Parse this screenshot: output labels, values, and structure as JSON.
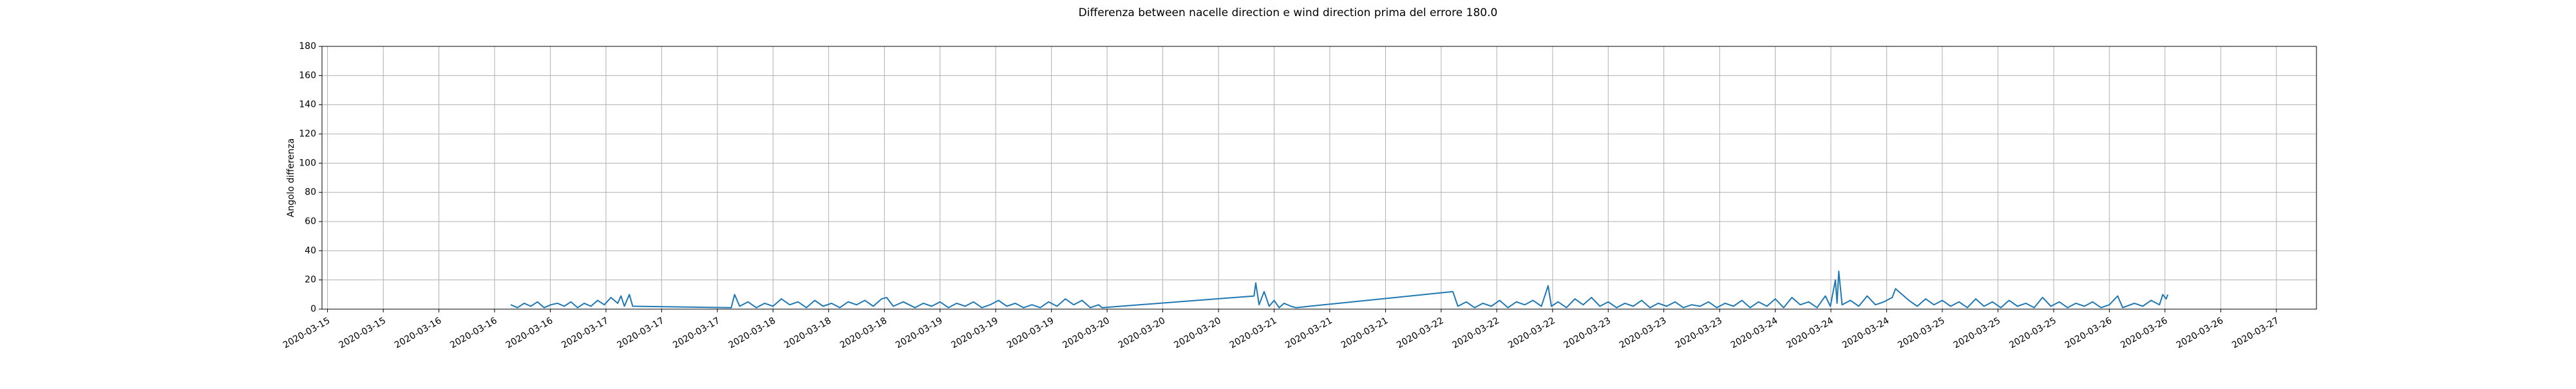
{
  "chart_data": {
    "type": "line",
    "title": "Differenza between nacelle direction e wind direction prima del errore 180.0",
    "ylabel": "Angolo differenza",
    "color": "#1f77b4",
    "grid": true,
    "xlim": [
      15.3,
      27.24
    ],
    "ylim": [
      0,
      180
    ],
    "yticks": [
      0,
      20,
      40,
      60,
      80,
      100,
      120,
      140,
      160,
      180
    ],
    "xticks": [
      {
        "value": 15.333,
        "label": "2020-03-15"
      },
      {
        "value": 15.667,
        "label": "2020-03-15"
      },
      {
        "value": 16,
        "label": "2020-03-16"
      },
      {
        "value": 16.333,
        "label": "2020-03-16"
      },
      {
        "value": 16.667,
        "label": "2020-03-16"
      },
      {
        "value": 17,
        "label": "2020-03-17"
      },
      {
        "value": 17.333,
        "label": "2020-03-17"
      },
      {
        "value": 17.667,
        "label": "2020-03-17"
      },
      {
        "value": 18,
        "label": "2020-03-18"
      },
      {
        "value": 18.333,
        "label": "2020-03-18"
      },
      {
        "value": 18.667,
        "label": "2020-03-18"
      },
      {
        "value": 19,
        "label": "2020-03-19"
      },
      {
        "value": 19.333,
        "label": "2020-03-19"
      },
      {
        "value": 19.667,
        "label": "2020-03-19"
      },
      {
        "value": 20,
        "label": "2020-03-20"
      },
      {
        "value": 20.333,
        "label": "2020-03-20"
      },
      {
        "value": 20.667,
        "label": "2020-03-20"
      },
      {
        "value": 21,
        "label": "2020-03-21"
      },
      {
        "value": 21.333,
        "label": "2020-03-21"
      },
      {
        "value": 21.667,
        "label": "2020-03-21"
      },
      {
        "value": 22,
        "label": "2020-03-22"
      },
      {
        "value": 22.333,
        "label": "2020-03-22"
      },
      {
        "value": 22.667,
        "label": "2020-03-22"
      },
      {
        "value": 23,
        "label": "2020-03-23"
      },
      {
        "value": 23.333,
        "label": "2020-03-23"
      },
      {
        "value": 23.667,
        "label": "2020-03-23"
      },
      {
        "value": 24,
        "label": "2020-03-24"
      },
      {
        "value": 24.333,
        "label": "2020-03-24"
      },
      {
        "value": 24.667,
        "label": "2020-03-24"
      },
      {
        "value": 25,
        "label": "2020-03-25"
      },
      {
        "value": 25.333,
        "label": "2020-03-25"
      },
      {
        "value": 25.667,
        "label": "2020-03-25"
      },
      {
        "value": 26,
        "label": "2020-03-26"
      },
      {
        "value": 26.333,
        "label": "2020-03-26"
      },
      {
        "value": 26.667,
        "label": "2020-03-26"
      },
      {
        "value": 27,
        "label": "2020-03-27"
      }
    ],
    "x": [
      16.43,
      16.47,
      16.51,
      16.55,
      16.59,
      16.63,
      16.67,
      16.71,
      16.75,
      16.79,
      16.83,
      16.87,
      16.91,
      16.95,
      16.99,
      17.03,
      17.07,
      17.09,
      17.11,
      17.14,
      17.16,
      17.75,
      17.77,
      17.8,
      17.85,
      17.9,
      17.95,
      18.0,
      18.05,
      18.1,
      18.15,
      18.2,
      18.25,
      18.3,
      18.35,
      18.4,
      18.45,
      18.5,
      18.55,
      18.6,
      18.65,
      18.68,
      18.72,
      18.78,
      18.85,
      18.9,
      18.95,
      19.0,
      19.05,
      19.1,
      19.15,
      19.2,
      19.25,
      19.3,
      19.35,
      19.4,
      19.45,
      19.5,
      19.55,
      19.6,
      19.65,
      19.7,
      19.75,
      19.8,
      19.85,
      19.9,
      19.95,
      19.97,
      20.88,
      20.89,
      20.91,
      20.94,
      20.97,
      21.0,
      21.03,
      21.06,
      21.1,
      21.13,
      22.07,
      22.1,
      22.15,
      22.2,
      22.25,
      22.3,
      22.35,
      22.4,
      22.45,
      22.5,
      22.55,
      22.6,
      22.64,
      22.66,
      22.7,
      22.75,
      22.8,
      22.85,
      22.9,
      22.95,
      23.0,
      23.05,
      23.1,
      23.15,
      23.2,
      23.25,
      23.3,
      23.35,
      23.4,
      23.45,
      23.5,
      23.55,
      23.6,
      23.65,
      23.7,
      23.75,
      23.8,
      23.85,
      23.9,
      23.95,
      24.0,
      24.05,
      24.1,
      24.15,
      24.2,
      24.25,
      24.3,
      24.33,
      24.36,
      24.37,
      24.38,
      24.4,
      24.45,
      24.5,
      24.55,
      24.6,
      24.65,
      24.7,
      24.72,
      24.75,
      24.8,
      24.85,
      24.9,
      24.95,
      25.0,
      25.05,
      25.1,
      25.15,
      25.2,
      25.25,
      25.3,
      25.35,
      25.4,
      25.45,
      25.5,
      25.55,
      25.6,
      25.65,
      25.7,
      25.75,
      25.8,
      25.85,
      25.9,
      25.95,
      26.0,
      26.05,
      26.08,
      26.15,
      26.2,
      26.25,
      26.3,
      26.32,
      26.34,
      26.35
    ],
    "values": [
      3,
      1,
      4,
      2,
      5,
      1,
      3,
      4,
      2,
      5,
      1,
      4,
      2,
      6,
      3,
      8,
      4,
      9,
      2,
      10,
      2,
      1,
      10,
      2,
      5,
      1,
      4,
      2,
      7,
      3,
      5,
      1,
      6,
      2,
      4,
      1,
      5,
      3,
      6,
      2,
      7,
      8,
      2,
      5,
      1,
      4,
      2,
      5,
      1,
      4,
      2,
      5,
      1,
      3,
      6,
      2,
      4,
      1,
      3,
      1,
      5,
      2,
      7,
      3,
      6,
      1,
      3,
      1,
      9,
      18,
      3,
      12,
      2,
      6,
      1,
      4,
      2,
      1,
      12,
      2,
      5,
      1,
      4,
      2,
      6,
      1,
      5,
      3,
      6,
      2,
      16,
      2,
      5,
      1,
      7,
      3,
      8,
      2,
      5,
      1,
      4,
      2,
      6,
      1,
      4,
      2,
      5,
      1,
      3,
      2,
      5,
      1,
      4,
      2,
      6,
      1,
      5,
      2,
      7,
      1,
      8,
      3,
      5,
      1,
      9,
      2,
      20,
      4,
      26,
      3,
      6,
      2,
      9,
      3,
      5,
      8,
      14,
      11,
      6,
      2,
      7,
      3,
      6,
      2,
      5,
      1,
      7,
      2,
      5,
      1,
      6,
      2,
      4,
      1,
      8,
      2,
      5,
      1,
      4,
      2,
      5,
      1,
      3,
      9,
      1,
      4,
      2,
      6,
      3,
      10,
      7,
      10
    ]
  }
}
